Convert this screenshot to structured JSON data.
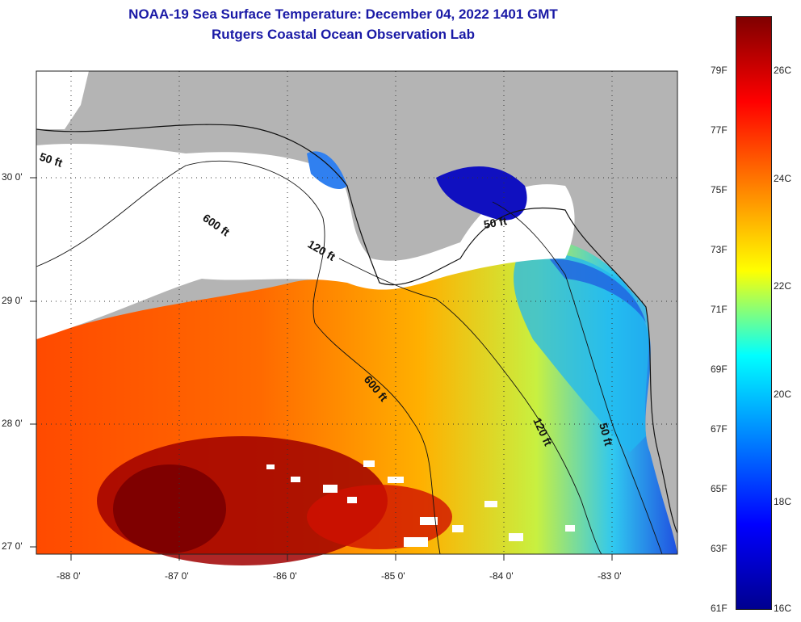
{
  "title": "NOAA-19 Sea Surface Temperature:  December 04, 2022 1401 GMT",
  "subtitle": "Rutgers Coastal Ocean Observation Lab",
  "map": {
    "lat_labels": [
      "30 0'",
      "29 0'",
      "28 0'",
      "27 0'"
    ],
    "lon_labels": [
      "-88 0'",
      "-87 0'",
      "-86 0'",
      "-85 0'",
      "-84 0'",
      "-83 0'"
    ],
    "contour_labels": [
      "50 ft",
      "600 ft",
      "120 ft",
      "50 ft",
      "600 ft",
      "120 ft",
      "50 ft"
    ]
  },
  "colorbar": {
    "fahrenheit_labels": [
      "79F",
      "77F",
      "75F",
      "73F",
      "71F",
      "69F",
      "67F",
      "65F",
      "63F",
      "61F"
    ],
    "celsius_labels": [
      "26C",
      "24C",
      "22C",
      "20C",
      "18C",
      "16C"
    ],
    "colors": [
      "#7f0000",
      "#ff0000",
      "#ff8000",
      "#ffff00",
      "#00ffff",
      "#0080ff",
      "#0000ff",
      "#00008f"
    ]
  }
}
